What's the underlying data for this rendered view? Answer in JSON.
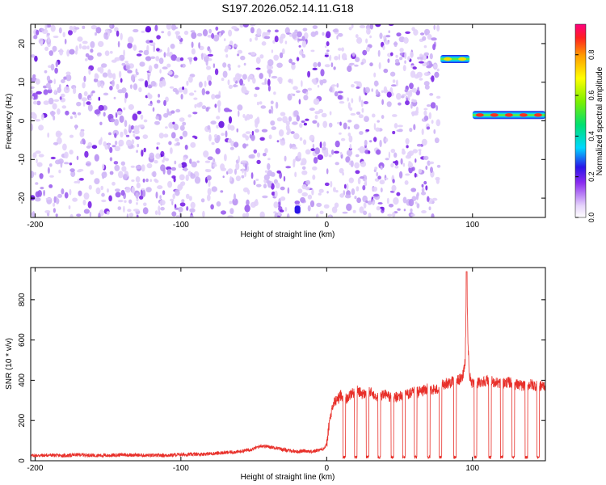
{
  "title": "S197.2026.052.14.11.G18",
  "colors": {
    "snr_line": "#e8302a",
    "axis": "#000000",
    "speckle_light": "#d9c6f5",
    "speckle_dark": "#6b10e0"
  },
  "chart_data": [
    {
      "type": "heatmap",
      "title": "S197.2026.052.14.11.G18",
      "xlabel": "Height of straight line (km)",
      "ylabel": "Frequency (Hz)",
      "xlim": [
        -203,
        150
      ],
      "ylim": [
        -25,
        25
      ],
      "xticks": [
        -200,
        -100,
        0,
        100
      ],
      "yticks": [
        -20,
        -10,
        0,
        10,
        20
      ],
      "xtick_labels": [
        "-200",
        "-100",
        "0",
        "100"
      ],
      "ytick_labels": [
        "-20",
        "-10",
        "0",
        "10",
        "20"
      ],
      "noise_region_x": [
        -203,
        77
      ],
      "features": [
        {
          "name": "tone-segment-1",
          "x": [
            78,
            98
          ],
          "freq": 16,
          "peak_amplitude": 0.7
        },
        {
          "name": "tone-segment-2",
          "x": [
            100,
            150
          ],
          "freq": 1.5,
          "peak_amplitude": 0.9
        },
        {
          "name": "blob-low",
          "x": [
            -22,
            -18
          ],
          "freq": -23,
          "peak_amplitude": 0.25
        }
      ],
      "colorbar": {
        "label": "Normalized spectral amplitude",
        "range": [
          0,
          0.95
        ],
        "ticks": [
          0.0,
          0.2,
          0.4,
          0.6,
          0.8
        ],
        "tick_labels": [
          "0.0",
          "0.2",
          "0.4",
          "0.6",
          "0.8"
        ]
      }
    },
    {
      "type": "line",
      "xlabel": "Height of straight line (km)",
      "ylabel": "SNR (10 * v/v)",
      "xlim": [
        -203,
        150
      ],
      "ylim": [
        0,
        960
      ],
      "xticks": [
        -200,
        -100,
        0,
        100
      ],
      "yticks": [
        0,
        200,
        400,
        600,
        800
      ],
      "xtick_labels": [
        "-200",
        "-100",
        "0",
        "100"
      ],
      "ytick_labels": [
        "0",
        "200",
        "400",
        "600",
        "800"
      ],
      "series": [
        {
          "name": "SNR",
          "x": [
            -203,
            -190,
            -180,
            -170,
            -160,
            -150,
            -140,
            -130,
            -120,
            -110,
            -100,
            -90,
            -80,
            -70,
            -60,
            -50,
            -45,
            -40,
            -35,
            -30,
            -25,
            -20,
            -15,
            -10,
            -5,
            -2,
            0,
            2,
            5,
            8,
            10,
            12,
            15,
            20,
            25,
            30,
            35,
            40,
            45,
            50,
            55,
            60,
            65,
            70,
            75,
            80,
            85,
            90,
            93,
            95,
            96,
            97,
            98,
            100,
            105,
            110,
            115,
            120,
            125,
            130,
            135,
            140,
            145,
            150
          ],
          "y": [
            25,
            28,
            25,
            30,
            27,
            26,
            30,
            28,
            26,
            27,
            30,
            32,
            35,
            40,
            45,
            60,
            75,
            70,
            65,
            55,
            50,
            45,
            50,
            45,
            55,
            60,
            80,
            200,
            290,
            310,
            330,
            300,
            320,
            350,
            330,
            340,
            320,
            330,
            310,
            320,
            330,
            340,
            345,
            360,
            350,
            380,
            390,
            400,
            410,
            500,
            940,
            560,
            420,
            380,
            390,
            400,
            390,
            385,
            390,
            380,
            370,
            380,
            370,
            375
          ]
        }
      ],
      "dropouts_x": [
        12,
        20,
        28,
        36,
        45,
        53,
        61,
        70,
        78,
        88,
        102,
        112,
        120,
        128,
        137,
        145
      ]
    }
  ]
}
